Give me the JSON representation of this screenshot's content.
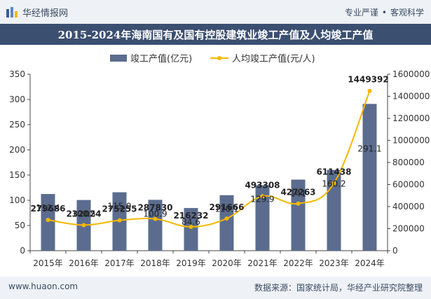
{
  "header": {
    "logo_text": "华经情报网",
    "tagline_left": "专业严谨",
    "tagline_right": "客观科学"
  },
  "chart_data": {
    "type": "bar",
    "title": "2015-2024年海南国有及国有控股建筑业竣工产值及人均竣工产值",
    "categories": [
      "2015年",
      "2016年",
      "2017年",
      "2018年",
      "2019年",
      "2020年",
      "2021年",
      "2022年",
      "2023年",
      "2024年"
    ],
    "series": [
      {
        "name": "竣工产值(亿元)",
        "type": "bar",
        "axis": "left",
        "color": "#5b6c8f",
        "values": [
          112.4,
          100.5,
          115.9,
          100.9,
          84.6,
          110.1,
          129.9,
          141,
          160.2,
          291.1
        ],
        "labels": [
          "112.4",
          "100.5",
          "115.9",
          "100.9",
          "84.6",
          "110.1",
          "129.9",
          "141",
          "160.2",
          "291.1"
        ]
      },
      {
        "name": "人均竣工产值(元/人)",
        "type": "line",
        "axis": "right",
        "color": "#f5b800",
        "values": [
          279686,
          232024,
          275255,
          287830,
          216232,
          291666,
          493308,
          427263,
          611438,
          1449392
        ],
        "labels": [
          "279686",
          "232024",
          "275255",
          "287830",
          "216232",
          "291666",
          "493308",
          "427263",
          "611438",
          "1449392"
        ]
      }
    ],
    "y_left": {
      "range": [
        0,
        350
      ],
      "ticks": [
        "0",
        "50",
        "100",
        "150",
        "200",
        "250",
        "300",
        "350"
      ]
    },
    "y_right": {
      "range": [
        0,
        1600000
      ],
      "ticks": [
        "0",
        "200000",
        "400000",
        "600000",
        "800000",
        "1000000",
        "1200000",
        "1400000",
        "1600000"
      ]
    },
    "legend_position": "top-center",
    "grid": false
  },
  "footer": {
    "website": "www.huaon.com",
    "source": "数据来源：国家统计局，华经产业研究院整理"
  }
}
